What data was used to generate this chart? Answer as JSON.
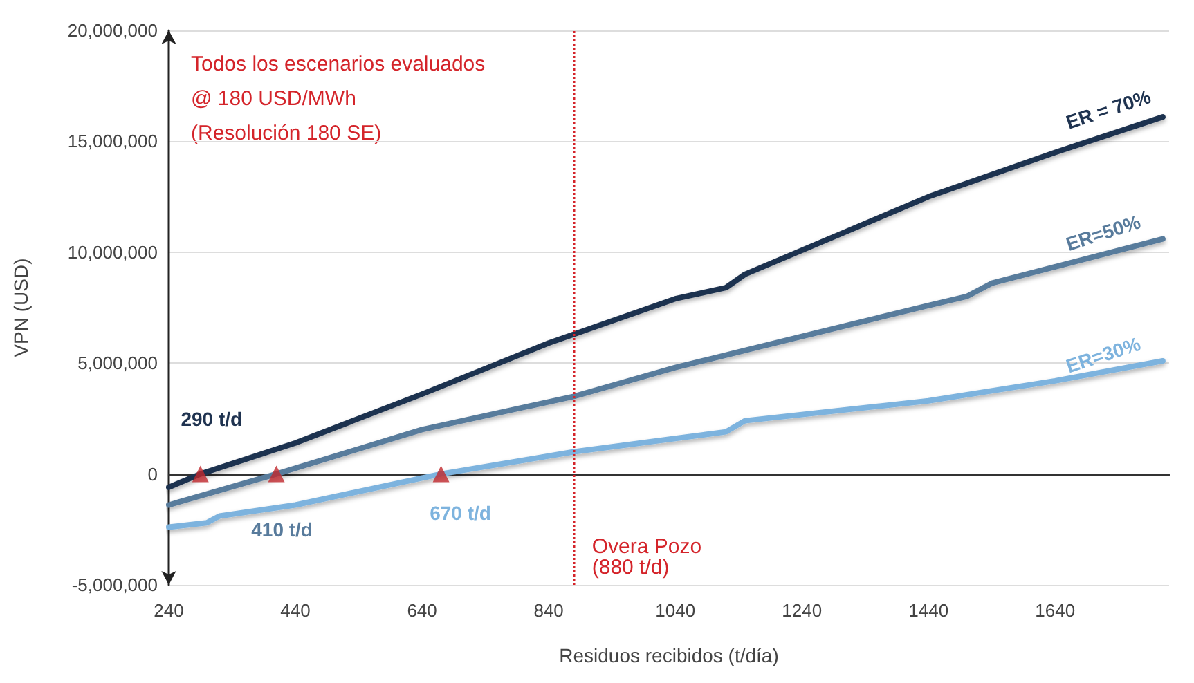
{
  "chart_data": {
    "type": "line",
    "xlabel": "Residuos recibidos (t/día)",
    "ylabel": "VPN (USD)",
    "xlim": [
      240,
      1820
    ],
    "xticks": [
      240,
      440,
      640,
      840,
      1040,
      1240,
      1440,
      1640
    ],
    "ylim": [
      -5000000,
      20000000
    ],
    "yticks": [
      {
        "value": -5000000,
        "label": "-5,000,000"
      },
      {
        "value": 0,
        "label": "0"
      },
      {
        "value": 5000000,
        "label": "5,000,000"
      },
      {
        "value": 10000000,
        "label": "10,000,000"
      },
      {
        "value": 15000000,
        "label": "15,000,000"
      },
      {
        "value": 20000000,
        "label": "20,000,000"
      }
    ],
    "grid": "y",
    "marker": "none",
    "line_style": "solid",
    "series": [
      {
        "name": "ER = 70%",
        "color": "#1f3350",
        "x": [
          240,
          290,
          440,
          640,
          840,
          1040,
          1120,
          1150,
          1440,
          1640,
          1810
        ],
        "values": [
          -600000,
          0,
          1400000,
          3600000,
          5900000,
          7900000,
          8400000,
          9000000,
          12500000,
          14500000,
          16100000
        ]
      },
      {
        "name": "ER=50%",
        "color": "#587b9c",
        "x": [
          240,
          410,
          640,
          880,
          1040,
          1240,
          1440,
          1500,
          1540,
          1810
        ],
        "values": [
          -1400000,
          0,
          2000000,
          3500000,
          4800000,
          6200000,
          7600000,
          8000000,
          8600000,
          10600000
        ]
      },
      {
        "name": "ER=30%",
        "color": "#7db3de",
        "x": [
          240,
          300,
          320,
          440,
          670,
          880,
          1040,
          1120,
          1150,
          1440,
          1640,
          1810
        ],
        "values": [
          -2400000,
          -2200000,
          -1900000,
          -1400000,
          0,
          1000000,
          1600000,
          1900000,
          2400000,
          3300000,
          4200000,
          5100000
        ]
      },
      {
        "type": "scatter",
        "marker": "triangle",
        "color": "#c0282d",
        "x": [
          290,
          410,
          670
        ],
        "values": [
          0,
          0,
          0
        ]
      }
    ],
    "ref_lines": [
      {
        "axis": "x",
        "value": 880,
        "label": "Overa Pozo\n(880 t/d)",
        "color": "#d4242a",
        "line_style": "dotted"
      }
    ],
    "annotations": [
      "Todos los escenarios evaluados\n@ 180 USD/MWh\n(Resolución 180 SE)",
      {
        "text": "290 t/d",
        "x": 290,
        "y": 0
      },
      {
        "text": "410 t/d",
        "x": 410,
        "y": 0
      },
      {
        "text": "670 t/d",
        "x": 670,
        "y": 0
      }
    ]
  }
}
